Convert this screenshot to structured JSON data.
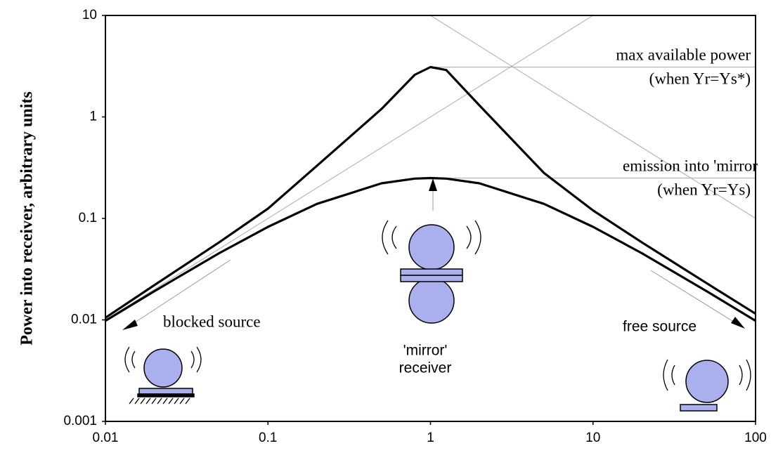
{
  "chart_data": {
    "type": "line",
    "y_label": "Power into receiver, arbitrary units",
    "x": [
      0.01,
      0.02,
      0.05,
      0.1,
      0.2,
      0.5,
      0.8,
      1,
      1.25,
      2,
      5,
      10,
      20,
      50,
      100
    ],
    "series": [
      {
        "color": "#000000",
        "values": [
          0.0105,
          0.022,
          0.058,
          0.125,
          0.33,
          1.2,
          2.6,
          3.1,
          2.9,
          1.3,
          0.28,
          0.12,
          0.058,
          0.023,
          0.0115
        ]
      },
      {
        "color": "#000000",
        "values": [
          0.0098,
          0.0192,
          0.0454,
          0.0826,
          0.139,
          0.222,
          0.247,
          0.25,
          0.247,
          0.222,
          0.139,
          0.0826,
          0.0454,
          0.0192,
          0.0098
        ]
      }
    ],
    "xlim": [
      0.01,
      100
    ],
    "ylim": [
      0.001,
      10
    ],
    "xticks": [
      0.01,
      0.1,
      1,
      10,
      100
    ],
    "yticks": [
      0.001,
      0.01,
      0.1,
      1,
      10
    ],
    "xscale": "log",
    "yscale": "log",
    "annotations": [
      "max available power",
      "(when Yr=Ys*)",
      "emission into 'mirror",
      "(when Yr=Ys)",
      "blocked source",
      "'mirror'",
      "receiver",
      "free source"
    ]
  }
}
